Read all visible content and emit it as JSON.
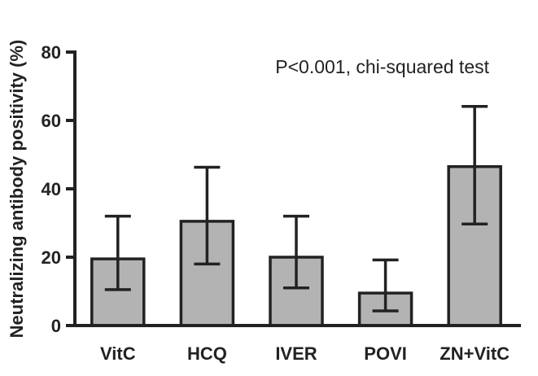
{
  "chart_data": {
    "type": "bar",
    "title": "",
    "xlabel": "",
    "ylabel": "Neutralizing antibody positivity (%)",
    "ylim": [
      0,
      80
    ],
    "yticks": [
      0,
      20,
      40,
      60,
      80
    ],
    "categories": [
      "VitC",
      "HCQ",
      "IVER",
      "POVI",
      "ZN+VitC"
    ],
    "values": [
      19.5,
      30.5,
      20,
      9.5,
      46.5
    ],
    "error_low": [
      10.5,
      18,
      11,
      4.3,
      29.7
    ],
    "error_high": [
      32,
      46.3,
      32,
      19.2,
      64.1
    ],
    "annotation": "P<0.001, chi-squared test",
    "bar_color": "#b3b3b3",
    "edge_color": "#222222"
  }
}
